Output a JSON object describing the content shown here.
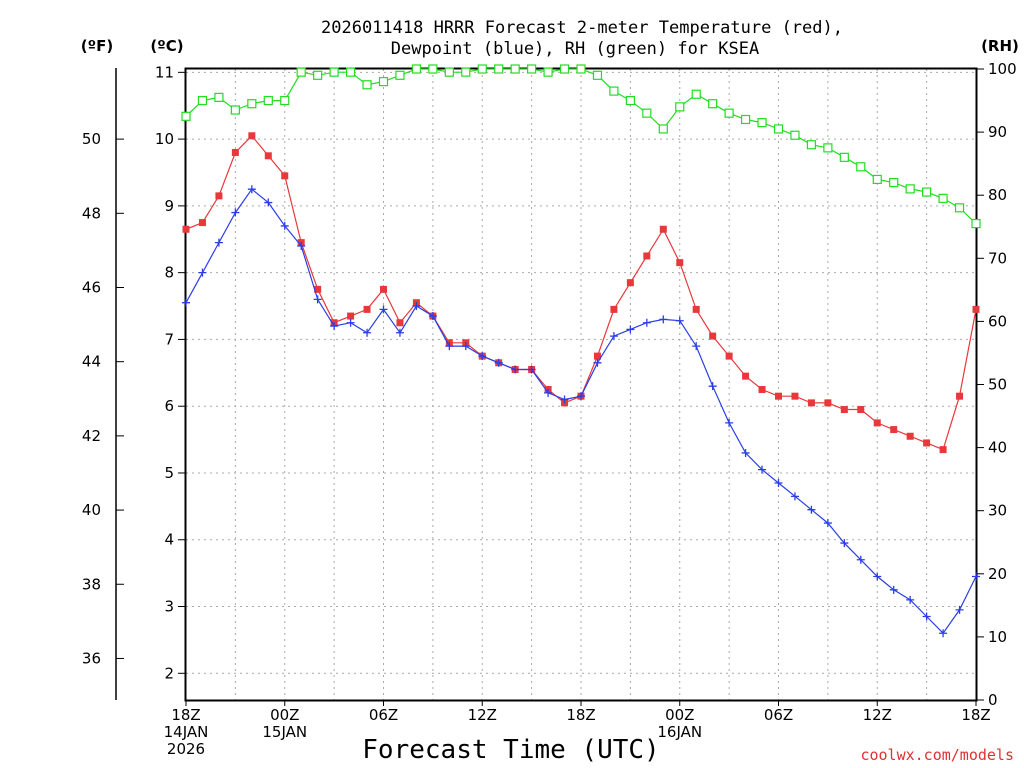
{
  "chart_data": {
    "type": "line",
    "title_line1": "2026011418 HRRR Forecast 2-meter Temperature (red),",
    "title_line2": "Dewpoint (blue), RH (green) for KSEA",
    "xlabel": "Forecast Time (UTC)",
    "credit": "coolwx.com/models",
    "unit_f": "(ºF)",
    "unit_c": "(ºC)",
    "unit_rh": "(RH)",
    "x_start_hour": 0,
    "x_end_hour": 48,
    "celsius_range": [
      1.6,
      11.05
    ],
    "rh_range": [
      0,
      100
    ],
    "celsius_ticks": [
      2,
      3,
      4,
      5,
      6,
      7,
      8,
      9,
      10,
      11
    ],
    "fahrenheit_ticks": [
      36,
      38,
      40,
      42,
      44,
      46,
      48,
      50
    ],
    "rh_ticks": [
      0,
      10,
      20,
      30,
      40,
      50,
      60,
      70,
      80,
      90,
      100
    ],
    "x_ticks": [
      {
        "hour": 0,
        "lines": [
          "18Z",
          "14JAN",
          "2026"
        ]
      },
      {
        "hour": 6,
        "lines": [
          "00Z",
          "15JAN"
        ]
      },
      {
        "hour": 12,
        "lines": [
          "06Z"
        ]
      },
      {
        "hour": 18,
        "lines": [
          "12Z"
        ]
      },
      {
        "hour": 24,
        "lines": [
          "18Z"
        ]
      },
      {
        "hour": 30,
        "lines": [
          "00Z",
          "16JAN"
        ]
      },
      {
        "hour": 36,
        "lines": [
          "06Z"
        ]
      },
      {
        "hour": 42,
        "lines": [
          "12Z"
        ]
      },
      {
        "hour": 48,
        "lines": [
          "18Z"
        ]
      }
    ],
    "colors": {
      "temperature": "#e8383c",
      "dewpoint": "#2a3ee8",
      "rh": "#22dd22"
    },
    "series": [
      {
        "name": "Temperature (°C)",
        "key": "temperature",
        "marker": "filled-square",
        "values": [
          8.65,
          8.75,
          9.15,
          9.8,
          10.05,
          9.75,
          9.45,
          8.45,
          7.75,
          7.25,
          7.35,
          7.45,
          7.75,
          7.25,
          7.55,
          7.35,
          6.95,
          6.95,
          6.75,
          6.65,
          6.55,
          6.55,
          6.25,
          6.05,
          6.15,
          6.75,
          7.45,
          7.85,
          8.25,
          8.65,
          8.15,
          7.45,
          7.05,
          6.75,
          6.45,
          6.25,
          6.15,
          6.15,
          6.05,
          6.05,
          5.95,
          5.95,
          5.75,
          5.65,
          5.55,
          5.45,
          5.35,
          6.15,
          7.45
        ]
      },
      {
        "name": "Dewpoint (°C)",
        "key": "dewpoint",
        "marker": "plus",
        "values": [
          7.55,
          8.0,
          8.45,
          8.9,
          9.25,
          9.05,
          8.7,
          8.4,
          7.6,
          7.2,
          7.25,
          7.1,
          7.45,
          7.1,
          7.5,
          7.35,
          6.9,
          6.9,
          6.75,
          6.65,
          6.55,
          6.55,
          6.2,
          6.1,
          6.15,
          6.65,
          7.05,
          7.15,
          7.25,
          7.3,
          7.28,
          6.9,
          6.3,
          5.75,
          5.3,
          5.05,
          4.85,
          4.65,
          4.45,
          4.25,
          3.95,
          3.7,
          3.45,
          3.25,
          3.1,
          2.85,
          2.6,
          2.95,
          3.45
        ]
      },
      {
        "name": "RH (%)",
        "key": "rh",
        "marker": "open-square",
        "values": [
          92.5,
          95.0,
          95.5,
          93.5,
          94.5,
          95.0,
          95.0,
          99.5,
          99.0,
          99.5,
          99.5,
          97.5,
          98.0,
          99.0,
          100.0,
          100.0,
          99.5,
          99.5,
          100.0,
          100.0,
          100.0,
          100.0,
          99.5,
          100.0,
          100.0,
          99.0,
          96.5,
          95.0,
          93.0,
          90.5,
          94.0,
          96.0,
          94.5,
          93.0,
          92.0,
          91.5,
          90.5,
          89.5,
          88.0,
          87.5,
          86.0,
          84.5,
          82.5,
          82.0,
          81.0,
          80.5,
          79.5,
          78.0,
          75.5
        ]
      }
    ]
  }
}
